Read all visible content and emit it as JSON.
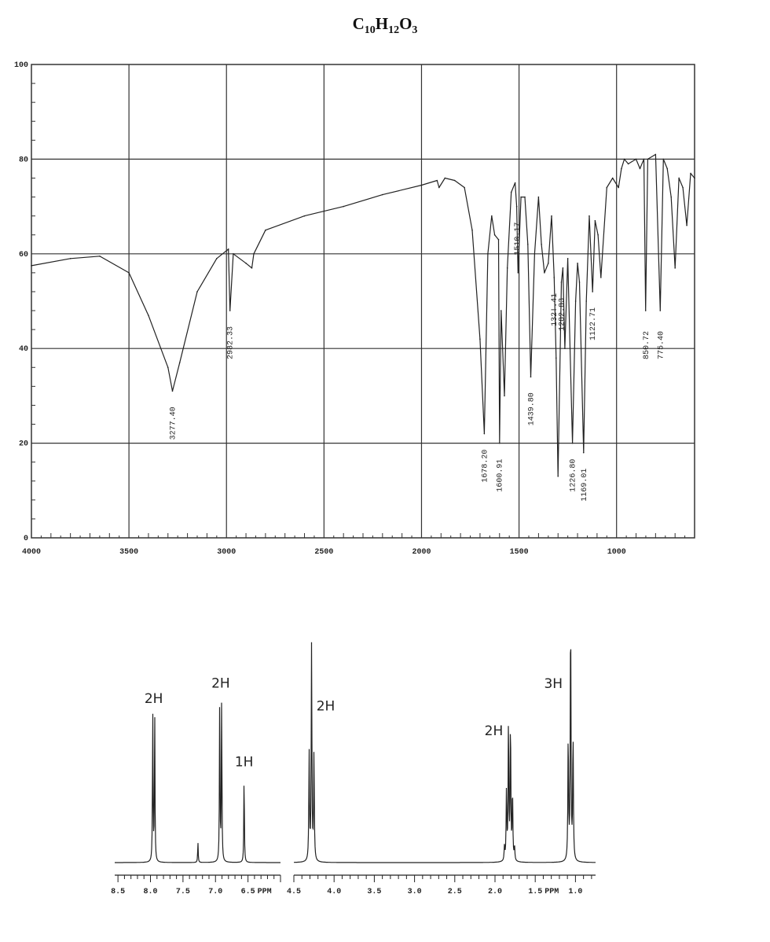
{
  "formula": {
    "C": "C",
    "c_sub": "10",
    "H": "H",
    "h_sub": "12",
    "O": "O",
    "o_sub": "3"
  },
  "colors": {
    "line": "#222222",
    "grid": "#333333",
    "background": "#ffffff"
  },
  "chart_data": [
    {
      "type": "line",
      "xlabel": "",
      "ylabel": "",
      "x_direction": "reversed",
      "xlim": [
        4000,
        600
      ],
      "ylim": [
        0,
        100
      ],
      "grid": true,
      "x_ticks": [
        "4000",
        "3500",
        "3000",
        "2500",
        "2000",
        "1500",
        "1000"
      ],
      "y_ticks": [
        "0",
        "20",
        "40",
        "60",
        "80",
        "100"
      ],
      "series": [
        {
          "x": [
            4000,
            3800,
            3650,
            3500,
            3400,
            3300,
            3277,
            3240,
            3150,
            3050,
            2990,
            2982,
            2965,
            2900,
            2870,
            2860,
            2800,
            2600,
            2400,
            2200,
            2000,
            1920,
            1910,
            1880,
            1830,
            1780,
            1740,
            1700,
            1678,
            1660,
            1640,
            1625,
            1605,
            1600,
            1592,
            1575,
            1560,
            1540,
            1520,
            1512,
            1505,
            1490,
            1470,
            1455,
            1440,
            1420,
            1400,
            1385,
            1370,
            1350,
            1333,
            1320,
            1310,
            1300,
            1283,
            1275,
            1265,
            1250,
            1226,
            1210,
            1200,
            1190,
            1169,
            1155,
            1140,
            1123,
            1110,
            1095,
            1080,
            1050,
            1020,
            990,
            975,
            960,
            940,
            900,
            880,
            860,
            851,
            840,
            800,
            776,
            760,
            740,
            720,
            700,
            680,
            660,
            640,
            620,
            600
          ],
          "y": [
            57.5,
            59,
            59.5,
            56,
            47,
            36,
            31,
            37,
            52,
            59,
            61,
            48,
            60,
            58,
            57,
            60,
            65,
            68,
            70,
            72.5,
            74.5,
            75.5,
            74,
            76,
            75.5,
            74,
            65,
            42,
            22,
            60,
            68,
            64,
            63,
            20,
            48,
            30,
            57,
            73,
            75,
            70,
            56,
            72,
            72,
            62,
            34,
            60,
            72,
            62,
            56,
            58,
            68,
            55,
            38,
            13,
            54,
            57,
            40,
            59,
            20,
            50,
            58,
            54,
            18,
            50,
            68,
            52,
            67,
            64,
            55,
            74,
            76,
            74,
            78,
            80,
            79,
            80,
            78,
            80,
            48,
            80,
            81,
            48,
            80,
            78,
            72,
            57,
            76,
            74,
            66,
            77,
            76
          ]
        }
      ],
      "peak_labels": [
        {
          "x": 3277.4,
          "text": "3277.40"
        },
        {
          "x": 2982.33,
          "text": "2982.33"
        },
        {
          "x": 1678.2,
          "text": "1678.20"
        },
        {
          "x": 1600.91,
          "text": "1600.91"
        },
        {
          "x": 1510.17,
          "text": "1510.17"
        },
        {
          "x": 1439.8,
          "text": "1439.80"
        },
        {
          "x": 1321.41,
          "text": "132!.41"
        },
        {
          "x": 1282.83,
          "text": "1282.83"
        },
        {
          "x": 1226.8,
          "text": "1226.80"
        },
        {
          "x": 1169.01,
          "text": "1169.01"
        },
        {
          "x": 1122.71,
          "text": "1122.71"
        },
        {
          "x": 850.72,
          "text": "850.72"
        },
        {
          "x": 775.4,
          "text": "775.40"
        }
      ]
    },
    {
      "type": "line",
      "xlabel": "",
      "ylabel": "",
      "x_direction": "reversed",
      "unit_label": "PPM",
      "panels": [
        {
          "xlim": [
            8.55,
            6.0
          ],
          "x_ticks": [
            "8.5",
            "8.0",
            "7.5",
            "7.0",
            "6.5"
          ],
          "peaks": [
            {
              "ppm": 7.95,
              "height": 0.6,
              "type": "doublet",
              "split": 0.03
            },
            {
              "ppm": 7.27,
              "height": 0.08,
              "type": "singlet"
            },
            {
              "ppm": 6.92,
              "height": 0.66,
              "type": "doublet",
              "split": 0.03
            },
            {
              "ppm": 6.56,
              "height": 0.35,
              "type": "singlet"
            }
          ],
          "integrations": [
            {
              "ppm": 7.95,
              "text": "2H"
            },
            {
              "ppm": 6.92,
              "text": "2H"
            },
            {
              "ppm": 6.56,
              "text": "1H"
            }
          ]
        },
        {
          "xlim": [
            4.5,
            0.75
          ],
          "x_ticks": [
            "4.5",
            "4.0",
            "3.5",
            "3.0",
            "2.5",
            "2.0",
            "1.5",
            "1.0"
          ],
          "peaks": [
            {
              "ppm": 4.28,
              "height": 0.85,
              "type": "triplet",
              "split": 0.03
            },
            {
              "ppm": 1.82,
              "height": 0.55,
              "type": "sextet",
              "split": 0.025
            },
            {
              "ppm": 1.06,
              "height": 1.0,
              "type": "triplet",
              "split": 0.03
            }
          ],
          "integrations": [
            {
              "ppm": 4.28,
              "text": "2H"
            },
            {
              "ppm": 1.82,
              "text": "2H"
            },
            {
              "ppm": 1.06,
              "text": "3H"
            }
          ]
        }
      ]
    }
  ]
}
